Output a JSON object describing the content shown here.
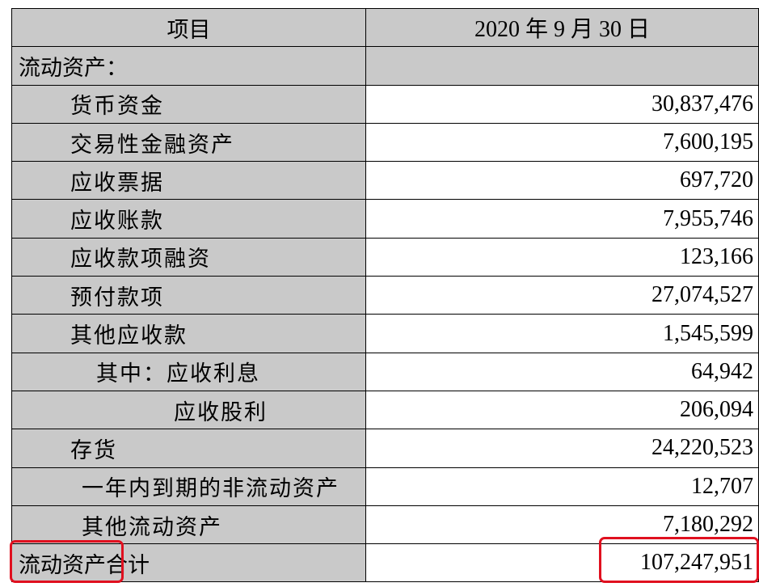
{
  "header": {
    "item_label": "项目",
    "date_label": "2020 年 9 月 30 日"
  },
  "rows": [
    {
      "label": "流动资产：",
      "value": "",
      "indent": 0
    },
    {
      "label": "货币资金",
      "value": "30,837,476",
      "indent": 1
    },
    {
      "label": "交易性金融资产",
      "value": "7,600,195",
      "indent": 1
    },
    {
      "label": "应收票据",
      "value": "697,720",
      "indent": 1
    },
    {
      "label": "应收账款",
      "value": "7,955,746",
      "indent": 1
    },
    {
      "label": "应收款项融资",
      "value": "123,166",
      "indent": 1
    },
    {
      "label": "预付款项",
      "value": "27,074,527",
      "indent": 1
    },
    {
      "label": "其他应收款",
      "value": "1,545,599",
      "indent": 1
    },
    {
      "label": "其中：应收利息",
      "value": "64,942",
      "indent": 2
    },
    {
      "label": "应收股利",
      "value": "206,094",
      "indent": 3
    },
    {
      "label": "存货",
      "value": "24,220,523",
      "indent": 1
    },
    {
      "label": "一年内到期的非流动资产",
      "value": "12,707",
      "indent": 1
    },
    {
      "label": "其他流动资产",
      "value": "7,180,292",
      "indent": 1
    },
    {
      "label": "流动资产合计",
      "value": "107,247,951",
      "indent": 0
    }
  ],
  "highlight_color": "#e0101f",
  "header_bg": "#c9c9c9"
}
